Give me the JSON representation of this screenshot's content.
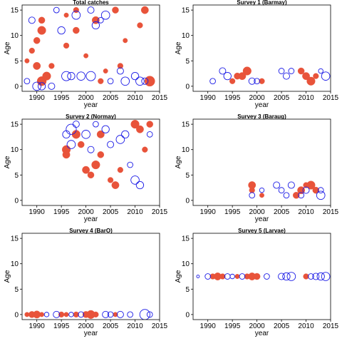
{
  "chart_data": [
    {
      "type": "scatter",
      "title": "Total catches",
      "xlabel": "year",
      "ylabel": "Age",
      "xlim": [
        1987,
        2015
      ],
      "ylim": [
        -1,
        16
      ],
      "xticks": [
        "1990",
        "1995",
        "2000",
        "2005",
        "2010",
        "2015"
      ],
      "yticks": [
        "0",
        "5",
        "10",
        "15"
      ],
      "grid": false,
      "series": [
        {
          "kind": "negative",
          "color": "#e8533a",
          "fill": true,
          "points": [
            [
              1988,
              5,
              0.5
            ],
            [
              1989,
              7,
              0.6
            ],
            [
              1990,
              9,
              0.7
            ],
            [
              1990,
              4,
              0.8
            ],
            [
              1991,
              13,
              0.7
            ],
            [
              1991,
              11,
              0.9
            ],
            [
              1991,
              1,
              1.0
            ],
            [
              1992,
              2,
              0.9
            ],
            [
              1993,
              4,
              0.6
            ],
            [
              1996,
              14,
              0.5
            ],
            [
              1996,
              8,
              0.6
            ],
            [
              1998,
              11,
              0.7
            ],
            [
              1998,
              15,
              0.6
            ],
            [
              2000,
              6,
              0.5
            ],
            [
              2002,
              13,
              0.8
            ],
            [
              2003,
              1,
              0.6
            ],
            [
              2004,
              3,
              0.5
            ],
            [
              2006,
              15,
              0.7
            ],
            [
              2007,
              4,
              0.6
            ],
            [
              2008,
              9,
              0.5
            ],
            [
              2011,
              12,
              0.6
            ],
            [
              2012,
              15,
              0.8
            ],
            [
              2013,
              1,
              1.1
            ]
          ]
        },
        {
          "kind": "positive",
          "color": "#1a1ae6",
          "fill": false,
          "points": [
            [
              1988,
              1,
              0.6
            ],
            [
              1989,
              13,
              0.7
            ],
            [
              1990,
              0,
              0.9
            ],
            [
              1991,
              0,
              0.8
            ],
            [
              1993,
              0,
              0.7
            ],
            [
              1994,
              15,
              0.6
            ],
            [
              1995,
              11,
              0.8
            ],
            [
              1996,
              2,
              1.0
            ],
            [
              1997,
              2,
              0.8
            ],
            [
              1998,
              14,
              0.9
            ],
            [
              1999,
              2,
              0.9
            ],
            [
              2001,
              15,
              0.7
            ],
            [
              2001,
              2,
              1.0
            ],
            [
              2002,
              12,
              0.8
            ],
            [
              2003,
              13,
              0.6
            ],
            [
              2004,
              14,
              0.9
            ],
            [
              2005,
              1,
              0.6
            ],
            [
              2007,
              3,
              0.7
            ],
            [
              2008,
              1,
              0.9
            ],
            [
              2010,
              2,
              0.8
            ],
            [
              2011,
              1,
              0.9
            ],
            [
              2012,
              1,
              0.7
            ]
          ]
        }
      ]
    },
    {
      "type": "scatter",
      "title": "Survey 1 (Barmay)",
      "xlabel": "year",
      "ylabel": "Age",
      "xlim": [
        1987,
        2015
      ],
      "ylim": [
        -1,
        16
      ],
      "xticks": [
        "1990",
        "1995",
        "2000",
        "2005",
        "2010",
        "2015"
      ],
      "yticks": [
        "0",
        "5",
        "10",
        "15"
      ],
      "grid": false,
      "series": [
        {
          "kind": "negative",
          "color": "#e8533a",
          "fill": true,
          "points": [
            [
              1995,
              1,
              0.6
            ],
            [
              1996,
              2,
              0.7
            ],
            [
              1997,
              2,
              0.8
            ],
            [
              1998,
              3,
              0.9
            ],
            [
              2001,
              1,
              0.6
            ],
            [
              2009,
              3,
              0.7
            ],
            [
              2010,
              2,
              0.8
            ],
            [
              2011,
              1,
              0.9
            ],
            [
              2012,
              2,
              0.6
            ]
          ]
        },
        {
          "kind": "positive",
          "color": "#1a1ae6",
          "fill": false,
          "points": [
            [
              1991,
              1,
              0.6
            ],
            [
              1993,
              3,
              0.7
            ],
            [
              1994,
              2,
              0.8
            ],
            [
              1999,
              1,
              0.7
            ],
            [
              2000,
              1,
              0.6
            ],
            [
              2005,
              3,
              0.6
            ],
            [
              2006,
              2,
              0.7
            ],
            [
              2007,
              3,
              0.6
            ],
            [
              2013,
              3,
              0.5
            ],
            [
              2014,
              2,
              0.9
            ]
          ]
        }
      ]
    },
    {
      "type": "scatter",
      "title": "Survey 2 (Normay)",
      "xlabel": "year",
      "ylabel": "Age",
      "xlim": [
        1987,
        2015
      ],
      "ylim": [
        -1,
        16
      ],
      "xticks": [
        "1990",
        "1995",
        "2000",
        "2005",
        "2010",
        "2015"
      ],
      "yticks": [
        "0",
        "5",
        "10",
        "15"
      ],
      "grid": false,
      "series": [
        {
          "kind": "negative",
          "color": "#e8533a",
          "fill": true,
          "points": [
            [
              1996,
              10,
              0.9
            ],
            [
              1996,
              9,
              0.8
            ],
            [
              1998,
              13,
              0.9
            ],
            [
              1999,
              11,
              0.7
            ],
            [
              2000,
              6,
              0.8
            ],
            [
              2001,
              5,
              0.7
            ],
            [
              2002,
              7,
              0.9
            ],
            [
              2003,
              13,
              0.8
            ],
            [
              2003,
              9,
              0.7
            ],
            [
              2005,
              4,
              0.6
            ],
            [
              2006,
              3,
              0.8
            ],
            [
              2007,
              6,
              0.6
            ],
            [
              2010,
              15,
              0.9
            ],
            [
              2011,
              14,
              0.8
            ],
            [
              2012,
              10,
              0.6
            ],
            [
              2013,
              15,
              0.7
            ]
          ]
        },
        {
          "kind": "positive",
          "color": "#1a1ae6",
          "fill": false,
          "points": [
            [
              1996,
              13,
              0.8
            ],
            [
              1997,
              14,
              1.1
            ],
            [
              1997,
              11,
              0.9
            ],
            [
              1998,
              15,
              0.7
            ],
            [
              2000,
              13,
              0.9
            ],
            [
              2001,
              10,
              0.7
            ],
            [
              2002,
              15,
              0.6
            ],
            [
              2004,
              14,
              0.8
            ],
            [
              2005,
              11,
              0.7
            ],
            [
              2007,
              12,
              0.9
            ],
            [
              2008,
              13,
              0.8
            ],
            [
              2009,
              7,
              0.6
            ],
            [
              2010,
              4,
              0.9
            ],
            [
              2011,
              3,
              0.8
            ],
            [
              2013,
              13,
              0.6
            ]
          ]
        }
      ]
    },
    {
      "type": "scatter",
      "title": "Survey 3 (Baraug)",
      "xlabel": "year",
      "ylabel": "Age",
      "xlim": [
        1987,
        2015
      ],
      "ylim": [
        -1,
        16
      ],
      "xticks": [
        "1990",
        "1995",
        "2000",
        "2005",
        "2010",
        "2015"
      ],
      "yticks": [
        "0",
        "5",
        "10",
        "15"
      ],
      "grid": false,
      "series": [
        {
          "kind": "negative",
          "color": "#e8533a",
          "fill": true,
          "points": [
            [
              1999,
              3,
              0.8
            ],
            [
              1999,
              2,
              0.6
            ],
            [
              2001,
              1,
              0.5
            ],
            [
              2008,
              1,
              0.7
            ],
            [
              2009,
              2,
              0.8
            ],
            [
              2010,
              3,
              0.6
            ],
            [
              2011,
              3,
              0.9
            ],
            [
              2012,
              2,
              0.7
            ]
          ]
        },
        {
          "kind": "positive",
          "color": "#1a1ae6",
          "fill": false,
          "points": [
            [
              1999,
              1,
              0.6
            ],
            [
              2001,
              2,
              0.5
            ],
            [
              2004,
              3,
              0.7
            ],
            [
              2005,
              2,
              0.6
            ],
            [
              2006,
              1,
              0.6
            ],
            [
              2007,
              3,
              0.7
            ],
            [
              2009,
              1,
              0.6
            ],
            [
              2010,
              2,
              0.7
            ],
            [
              2013,
              1,
              0.9
            ],
            [
              2013,
              2,
              0.6
            ]
          ]
        }
      ]
    },
    {
      "type": "scatter",
      "title": "Survey 4 (BarO)",
      "xlabel": "year",
      "ylabel": "Age",
      "xlim": [
        1987,
        2015
      ],
      "ylim": [
        -1,
        16
      ],
      "xticks": [
        "1990",
        "1995",
        "2000",
        "2005",
        "2010",
        "2015"
      ],
      "yticks": [
        "0",
        "5",
        "10",
        "15"
      ],
      "grid": false,
      "series": [
        {
          "kind": "negative",
          "color": "#e8533a",
          "fill": true,
          "points": [
            [
              1988,
              0,
              0.5
            ],
            [
              1989,
              0,
              0.7
            ],
            [
              1990,
              0,
              0.8
            ],
            [
              1991,
              0,
              0.5
            ],
            [
              1995,
              0,
              0.6
            ],
            [
              1996,
              0,
              0.5
            ],
            [
              1998,
              0,
              0.6
            ],
            [
              2000,
              0,
              0.7
            ],
            [
              2001,
              0,
              0.9
            ],
            [
              2002,
              0,
              0.6
            ],
            [
              2006,
              0,
              0.5
            ]
          ]
        },
        {
          "kind": "positive",
          "color": "#1a1ae6",
          "fill": false,
          "points": [
            [
              1992,
              0,
              0.5
            ],
            [
              1994,
              0,
              0.7
            ],
            [
              1997,
              0,
              0.5
            ],
            [
              1999,
              0,
              0.6
            ],
            [
              2004,
              0,
              0.7
            ],
            [
              2005,
              0,
              0.6
            ],
            [
              2007,
              0,
              0.7
            ],
            [
              2009,
              0,
              0.6
            ],
            [
              2012,
              0,
              1.1
            ],
            [
              2013,
              0,
              0.6
            ]
          ]
        }
      ]
    },
    {
      "type": "scatter",
      "title": "Survey 5 (Larvae)",
      "xlabel": "year",
      "ylabel": "Age",
      "xlim": [
        1987,
        2015
      ],
      "ylim": [
        -1,
        16
      ],
      "xticks": [
        "1990",
        "1995",
        "2000",
        "2005",
        "2010",
        "2015"
      ],
      "yticks": [
        "0",
        "5",
        "10",
        "15"
      ],
      "grid": false,
      "series": [
        {
          "kind": "negative",
          "color": "#e8533a",
          "fill": true,
          "points": [
            [
              1991,
              7.5,
              0.6
            ],
            [
              1992,
              7.5,
              0.8
            ],
            [
              1993,
              7.5,
              0.6
            ],
            [
              1996,
              7.5,
              0.5
            ],
            [
              1998,
              7.5,
              0.6
            ],
            [
              1999,
              7.5,
              0.8
            ],
            [
              2000,
              7.5,
              0.7
            ],
            [
              2010,
              7.5,
              0.6
            ]
          ]
        },
        {
          "kind": "positive",
          "color": "#1a1ae6",
          "fill": false,
          "points": [
            [
              1988,
              7.5,
              0.3
            ],
            [
              1990,
              7.5,
              0.6
            ],
            [
              1994,
              7.5,
              0.6
            ],
            [
              1995,
              7.5,
              0.5
            ],
            [
              1997,
              7.5,
              0.6
            ],
            [
              2002,
              7.5,
              0.6
            ],
            [
              2005,
              7.5,
              0.7
            ],
            [
              2006,
              7.5,
              0.8
            ],
            [
              2007,
              7.5,
              0.9
            ],
            [
              2011,
              7.5,
              0.6
            ],
            [
              2012,
              7.5,
              0.7
            ],
            [
              2013,
              7.5,
              0.8
            ],
            [
              2014,
              7.5,
              0.9
            ]
          ]
        }
      ]
    }
  ]
}
